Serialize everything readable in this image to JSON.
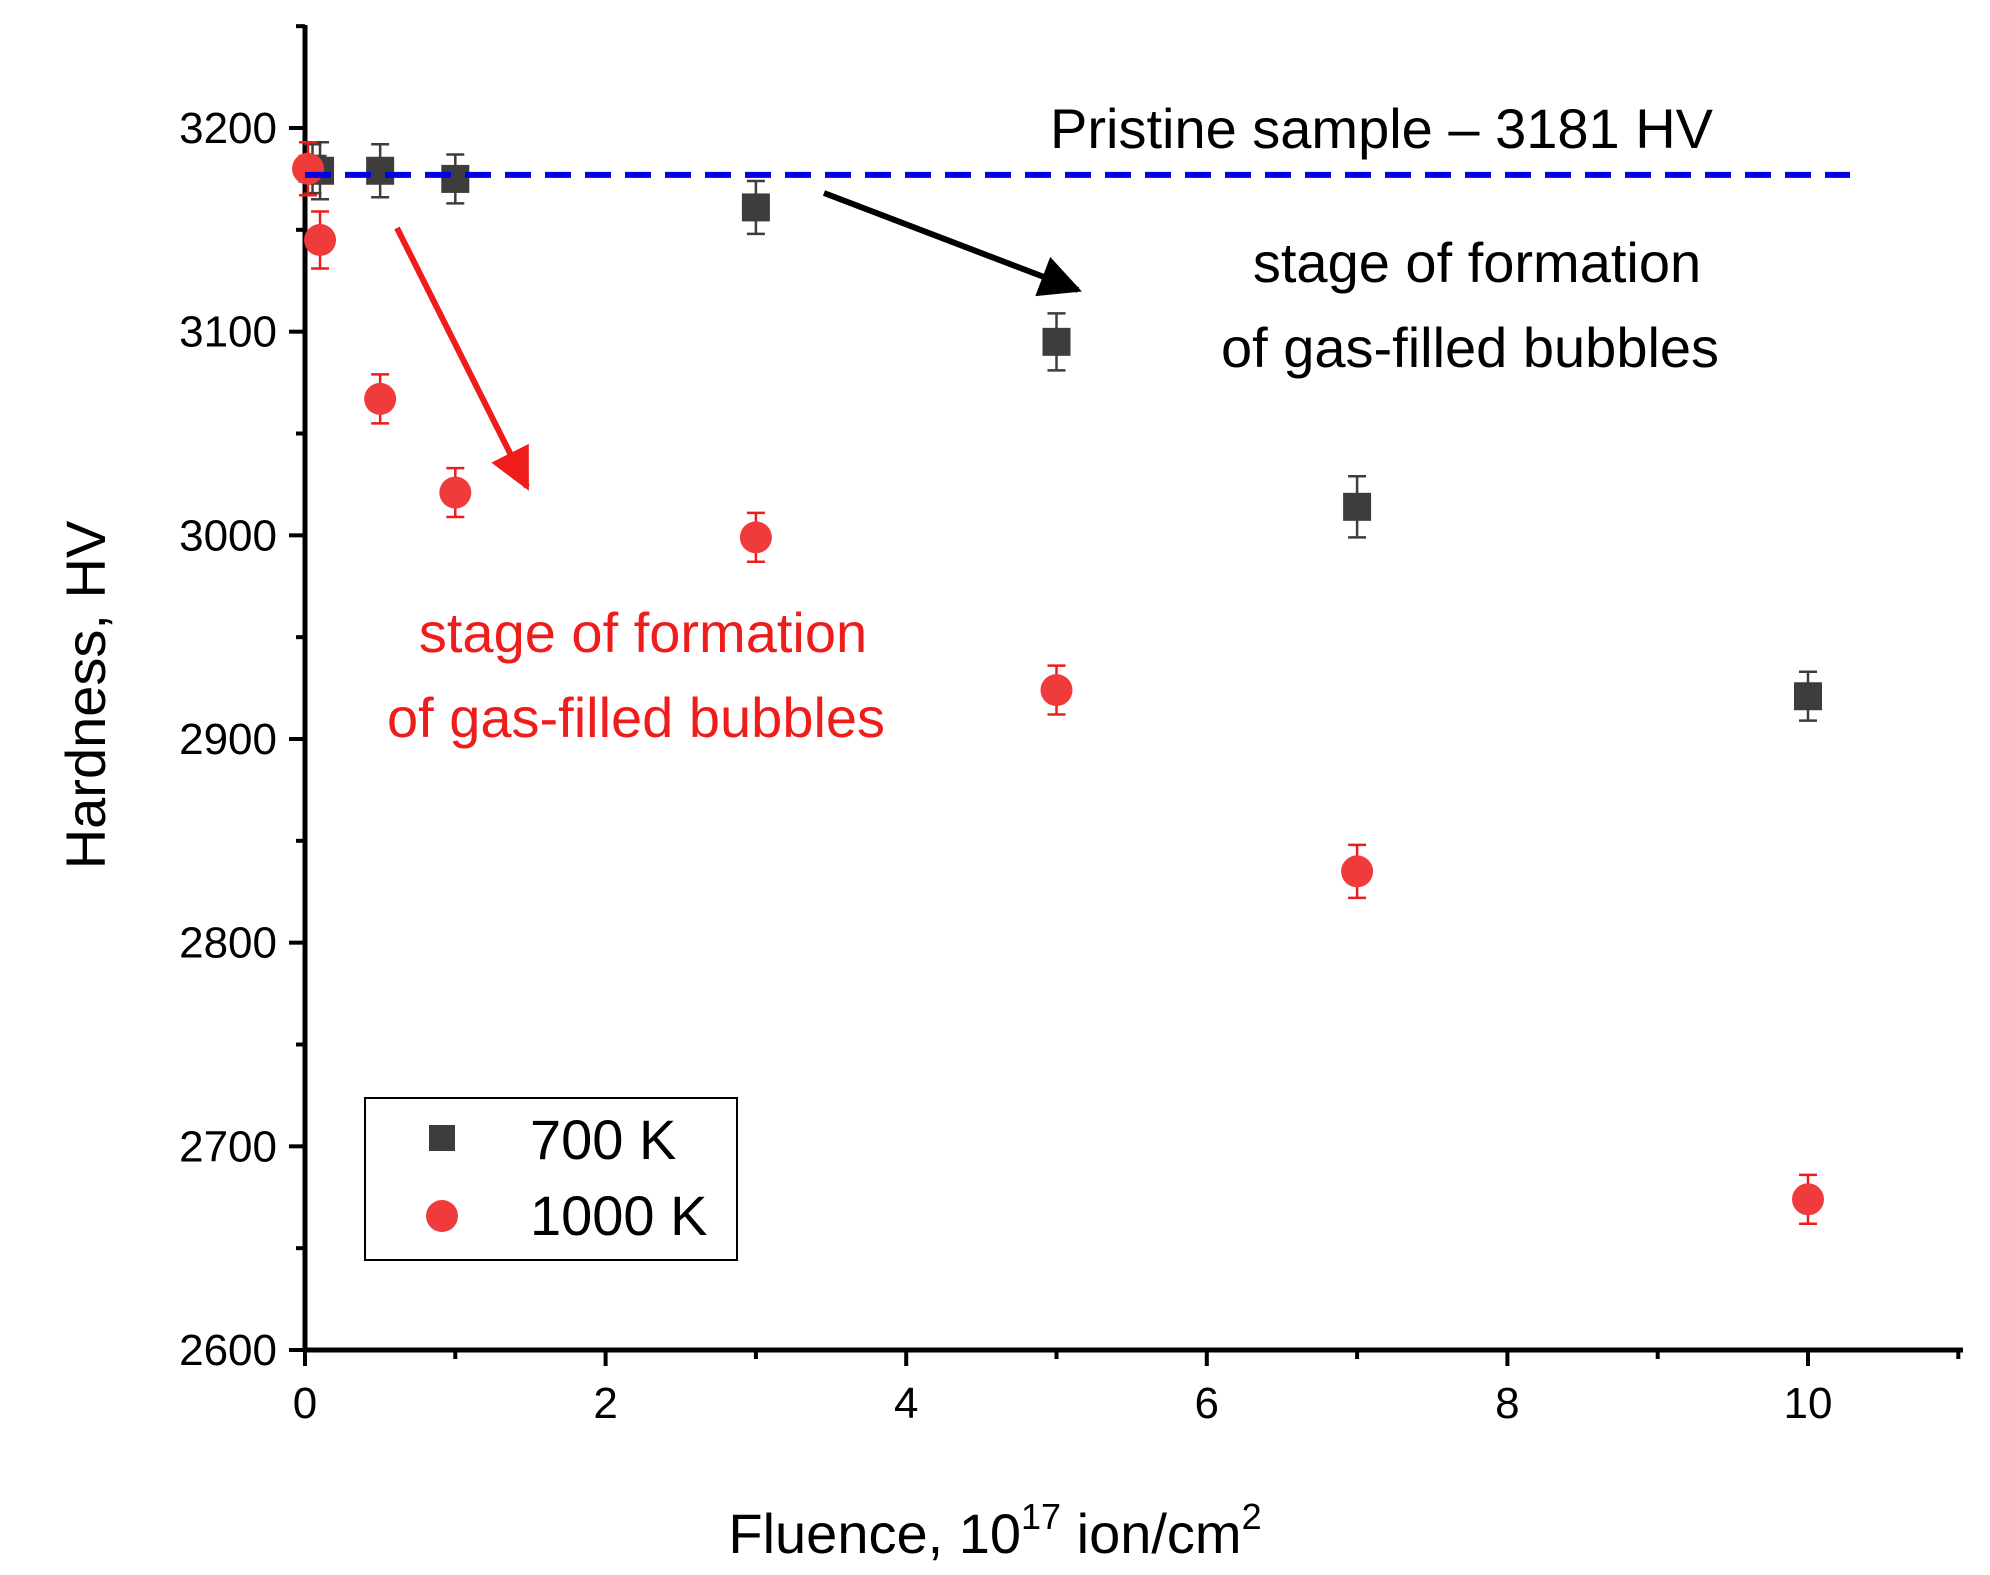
{
  "chart_data": {
    "type": "scatter",
    "title": "",
    "xlabel": "Fluence, 10",
    "xlabel_sup": "17",
    "xlabel_rest": " ion/cm",
    "xlabel_sup2": "2",
    "ylabel": "Hardness, HV",
    "xlim": [
      0,
      11
    ],
    "ylim": [
      2600,
      3250
    ],
    "xticks": [
      0,
      2,
      4,
      6,
      8,
      10
    ],
    "yticks": [
      2600,
      2700,
      2800,
      2900,
      3000,
      3100,
      3200
    ],
    "series": [
      {
        "name": "700 K",
        "marker": "square",
        "color": "#3d3d3d",
        "x": [
          0.05,
          0.1,
          0.5,
          1,
          3,
          5,
          7,
          10
        ],
        "y": [
          3180,
          3179,
          3179,
          3175,
          3161,
          3095,
          3014,
          2921
        ],
        "err": [
          12,
          14,
          13,
          12,
          13,
          14,
          15,
          12
        ]
      },
      {
        "name": "1000 K",
        "marker": "circle",
        "color": "#ef3b3b",
        "x": [
          0.02,
          0.1,
          0.5,
          1,
          3,
          5,
          7,
          10
        ],
        "y": [
          3180,
          3145,
          3067,
          3021,
          2999,
          2924,
          2835,
          2674
        ],
        "err": [
          13,
          14,
          12,
          12,
          12,
          12,
          13,
          12
        ]
      }
    ],
    "reference_line": {
      "value": 3177,
      "color": "#0000e0",
      "style": "dashed"
    },
    "annotations": {
      "pristine": "Pristine sample – 3181 HV",
      "black_line1": "stage of formation",
      "black_line2": "of gas-filled bubbles",
      "red_line1": "stage of formation",
      "red_line2": "of gas-filled bubbles"
    },
    "legend_placement": "bottom-left"
  }
}
